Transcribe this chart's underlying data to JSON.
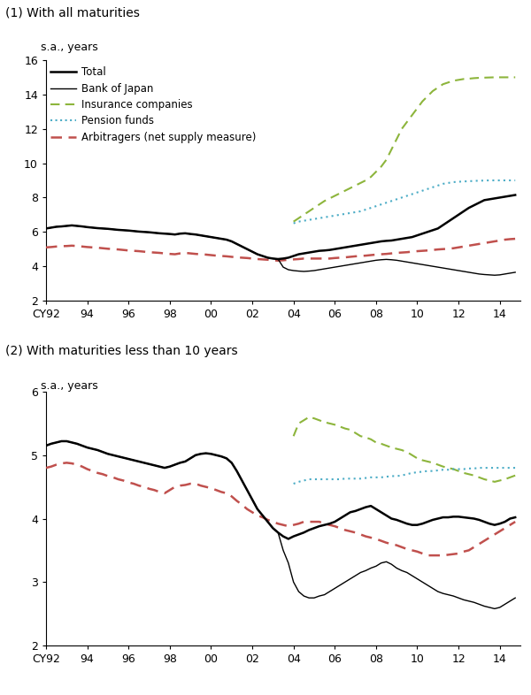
{
  "title1": "(1) With all maturities",
  "title2": "(2) With maturities less than 10 years",
  "ylabel": "s.a., years",
  "xtick_labels": [
    "CY92",
    "94",
    "96",
    "98",
    "00",
    "02",
    "04",
    "06",
    "08",
    "10",
    "12",
    "14"
  ],
  "ylim1": [
    2,
    16
  ],
  "ylim2": [
    2,
    6
  ],
  "yticks1": [
    2,
    4,
    6,
    8,
    10,
    12,
    14,
    16
  ],
  "yticks2": [
    2,
    3,
    4,
    5,
    6
  ],
  "legend_labels": [
    "Total",
    "Bank of Japan",
    "Insurance companies",
    "Pension funds",
    "Arbitragers (net supply measure)"
  ],
  "colors": {
    "total": "#000000",
    "boj": "#000000",
    "insurance": "#8db53c",
    "pension": "#4bacc6",
    "arbitragers": "#c0504d"
  },
  "x": [
    1992.0,
    1992.25,
    1992.5,
    1992.75,
    1993.0,
    1993.25,
    1993.5,
    1993.75,
    1994.0,
    1994.25,
    1994.5,
    1994.75,
    1995.0,
    1995.25,
    1995.5,
    1995.75,
    1996.0,
    1996.25,
    1996.5,
    1996.75,
    1997.0,
    1997.25,
    1997.5,
    1997.75,
    1998.0,
    1998.25,
    1998.5,
    1998.75,
    1999.0,
    1999.25,
    1999.5,
    1999.75,
    2000.0,
    2000.25,
    2000.5,
    2000.75,
    2001.0,
    2001.25,
    2001.5,
    2001.75,
    2002.0,
    2002.25,
    2002.5,
    2002.75,
    2003.0,
    2003.25,
    2003.5,
    2003.75,
    2004.0,
    2004.25,
    2004.5,
    2004.75,
    2005.0,
    2005.25,
    2005.5,
    2005.75,
    2006.0,
    2006.25,
    2006.5,
    2006.75,
    2007.0,
    2007.25,
    2007.5,
    2007.75,
    2008.0,
    2008.25,
    2008.5,
    2008.75,
    2009.0,
    2009.25,
    2009.5,
    2009.75,
    2010.0,
    2010.25,
    2010.5,
    2010.75,
    2011.0,
    2011.25,
    2011.5,
    2011.75,
    2012.0,
    2012.25,
    2012.5,
    2012.75,
    2013.0,
    2013.25,
    2013.5,
    2013.75,
    2014.0,
    2014.25,
    2014.5,
    2014.75
  ],
  "total1": [
    6.2,
    6.25,
    6.3,
    6.32,
    6.35,
    6.38,
    6.35,
    6.32,
    6.28,
    6.25,
    6.22,
    6.2,
    6.18,
    6.15,
    6.12,
    6.1,
    6.08,
    6.05,
    6.02,
    6.0,
    5.98,
    5.95,
    5.92,
    5.9,
    5.88,
    5.85,
    5.9,
    5.92,
    5.88,
    5.85,
    5.8,
    5.75,
    5.7,
    5.65,
    5.6,
    5.55,
    5.45,
    5.3,
    5.15,
    5.0,
    4.85,
    4.7,
    4.6,
    4.5,
    4.45,
    4.42,
    4.45,
    4.5,
    4.6,
    4.7,
    4.75,
    4.8,
    4.85,
    4.9,
    4.92,
    4.95,
    5.0,
    5.05,
    5.1,
    5.15,
    5.2,
    5.25,
    5.3,
    5.35,
    5.4,
    5.45,
    5.48,
    5.5,
    5.55,
    5.6,
    5.65,
    5.7,
    5.8,
    5.9,
    6.0,
    6.1,
    6.2,
    6.4,
    6.6,
    6.8,
    7.0,
    7.2,
    7.4,
    7.55,
    7.7,
    7.85,
    7.9,
    7.95,
    8.0,
    8.05,
    8.1,
    8.15
  ],
  "boj1": [
    6.2,
    6.25,
    6.3,
    6.32,
    6.35,
    6.38,
    6.35,
    6.32,
    6.28,
    6.25,
    6.22,
    6.2,
    6.18,
    6.15,
    6.12,
    6.1,
    6.08,
    6.05,
    6.02,
    6.0,
    5.98,
    5.95,
    5.92,
    5.9,
    5.88,
    5.85,
    5.9,
    5.92,
    5.88,
    5.85,
    5.8,
    5.75,
    5.7,
    5.65,
    5.6,
    5.55,
    5.45,
    5.3,
    5.15,
    5.0,
    4.85,
    4.7,
    4.6,
    4.5,
    4.45,
    4.42,
    3.95,
    3.8,
    3.75,
    3.72,
    3.7,
    3.72,
    3.75,
    3.8,
    3.85,
    3.9,
    3.95,
    4.0,
    4.05,
    4.1,
    4.15,
    4.2,
    4.25,
    4.3,
    4.35,
    4.38,
    4.4,
    4.38,
    4.35,
    4.3,
    4.25,
    4.2,
    4.15,
    4.1,
    4.05,
    4.0,
    3.95,
    3.9,
    3.85,
    3.8,
    3.75,
    3.7,
    3.65,
    3.6,
    3.55,
    3.52,
    3.5,
    3.48,
    3.5,
    3.55,
    3.6,
    3.65
  ],
  "insurance1": [
    null,
    null,
    null,
    null,
    null,
    null,
    null,
    null,
    null,
    null,
    null,
    null,
    null,
    null,
    null,
    null,
    null,
    null,
    null,
    null,
    null,
    null,
    null,
    null,
    null,
    null,
    null,
    null,
    null,
    null,
    null,
    null,
    null,
    null,
    null,
    null,
    null,
    null,
    null,
    null,
    null,
    null,
    null,
    null,
    null,
    null,
    null,
    null,
    6.6,
    6.8,
    7.0,
    7.2,
    7.4,
    7.6,
    7.8,
    7.95,
    8.1,
    8.25,
    8.4,
    8.55,
    8.7,
    8.85,
    9.0,
    9.2,
    9.5,
    9.8,
    10.2,
    10.8,
    11.4,
    12.0,
    12.4,
    12.8,
    13.2,
    13.6,
    13.9,
    14.2,
    14.4,
    14.6,
    14.7,
    14.8,
    14.85,
    14.9,
    14.92,
    14.95,
    14.97,
    14.98,
    14.99,
    15.0,
    15.0,
    15.0,
    15.0,
    15.0
  ],
  "pension1": [
    null,
    null,
    null,
    null,
    null,
    null,
    null,
    null,
    null,
    null,
    null,
    null,
    null,
    null,
    null,
    null,
    null,
    null,
    null,
    null,
    null,
    null,
    null,
    null,
    null,
    null,
    null,
    null,
    null,
    null,
    null,
    null,
    null,
    null,
    null,
    null,
    null,
    null,
    null,
    null,
    null,
    null,
    null,
    null,
    null,
    null,
    null,
    null,
    6.5,
    6.6,
    6.65,
    6.7,
    6.75,
    6.8,
    6.85,
    6.9,
    6.95,
    7.0,
    7.05,
    7.1,
    7.15,
    7.2,
    7.3,
    7.4,
    7.5,
    7.6,
    7.7,
    7.8,
    7.9,
    8.0,
    8.1,
    8.2,
    8.3,
    8.4,
    8.5,
    8.6,
    8.7,
    8.8,
    8.85,
    8.9,
    8.92,
    8.94,
    8.95,
    8.97,
    8.98,
    8.99,
    9.0,
    9.0,
    9.0,
    9.0,
    9.0,
    9.0
  ],
  "arbitragers1": [
    5.1,
    5.12,
    5.15,
    5.17,
    5.18,
    5.2,
    5.18,
    5.15,
    5.12,
    5.1,
    5.08,
    5.05,
    5.02,
    5.0,
    4.98,
    4.95,
    4.92,
    4.9,
    4.88,
    4.85,
    4.82,
    4.8,
    4.78,
    4.75,
    4.72,
    4.7,
    4.75,
    4.78,
    4.75,
    4.72,
    4.7,
    4.68,
    4.65,
    4.62,
    4.6,
    4.58,
    4.55,
    4.52,
    4.5,
    4.48,
    4.45,
    4.42,
    4.4,
    4.38,
    4.35,
    4.33,
    4.35,
    4.38,
    4.4,
    4.42,
    4.45,
    4.45,
    4.45,
    4.45,
    4.45,
    4.45,
    4.48,
    4.5,
    4.52,
    4.55,
    4.58,
    4.6,
    4.62,
    4.65,
    4.68,
    4.7,
    4.72,
    4.75,
    4.78,
    4.8,
    4.82,
    4.85,
    4.88,
    4.9,
    4.92,
    4.95,
    4.98,
    5.0,
    5.02,
    5.05,
    5.1,
    5.15,
    5.2,
    5.25,
    5.3,
    5.35,
    5.4,
    5.45,
    5.5,
    5.55,
    5.58,
    5.6
  ],
  "total2": [
    5.15,
    5.18,
    5.2,
    5.22,
    5.22,
    5.2,
    5.18,
    5.15,
    5.12,
    5.1,
    5.08,
    5.05,
    5.02,
    5.0,
    4.98,
    4.96,
    4.94,
    4.92,
    4.9,
    4.88,
    4.86,
    4.84,
    4.82,
    4.8,
    4.82,
    4.85,
    4.88,
    4.9,
    4.95,
    5.0,
    5.02,
    5.03,
    5.02,
    5.0,
    4.98,
    4.95,
    4.88,
    4.75,
    4.6,
    4.45,
    4.3,
    4.15,
    4.05,
    3.95,
    3.85,
    3.78,
    3.72,
    3.68,
    3.72,
    3.75,
    3.78,
    3.82,
    3.85,
    3.88,
    3.9,
    3.92,
    3.95,
    4.0,
    4.05,
    4.1,
    4.12,
    4.15,
    4.18,
    4.2,
    4.15,
    4.1,
    4.05,
    4.0,
    3.98,
    3.95,
    3.92,
    3.9,
    3.9,
    3.92,
    3.95,
    3.98,
    4.0,
    4.02,
    4.02,
    4.03,
    4.03,
    4.02,
    4.01,
    4.0,
    3.98,
    3.95,
    3.92,
    3.9,
    3.92,
    3.95,
    4.0,
    4.02
  ],
  "boj2": [
    5.15,
    5.18,
    5.2,
    5.22,
    5.22,
    5.2,
    5.18,
    5.15,
    5.12,
    5.1,
    5.08,
    5.05,
    5.02,
    5.0,
    4.98,
    4.96,
    4.94,
    4.92,
    4.9,
    4.88,
    4.86,
    4.84,
    4.82,
    4.8,
    4.82,
    4.85,
    4.88,
    4.9,
    4.95,
    5.0,
    5.02,
    5.03,
    5.02,
    5.0,
    4.98,
    4.95,
    4.88,
    4.75,
    4.6,
    4.45,
    4.3,
    4.15,
    4.05,
    3.95,
    3.85,
    3.78,
    3.5,
    3.3,
    3.0,
    2.85,
    2.78,
    2.75,
    2.75,
    2.78,
    2.8,
    2.85,
    2.9,
    2.95,
    3.0,
    3.05,
    3.1,
    3.15,
    3.18,
    3.22,
    3.25,
    3.3,
    3.32,
    3.28,
    3.22,
    3.18,
    3.15,
    3.1,
    3.05,
    3.0,
    2.95,
    2.9,
    2.85,
    2.82,
    2.8,
    2.78,
    2.75,
    2.72,
    2.7,
    2.68,
    2.65,
    2.62,
    2.6,
    2.58,
    2.6,
    2.65,
    2.7,
    2.75
  ],
  "insurance2": [
    null,
    null,
    null,
    null,
    null,
    null,
    null,
    null,
    null,
    null,
    null,
    null,
    null,
    null,
    null,
    null,
    null,
    null,
    null,
    null,
    null,
    null,
    null,
    null,
    null,
    null,
    null,
    null,
    null,
    null,
    null,
    null,
    null,
    null,
    null,
    null,
    null,
    null,
    null,
    null,
    null,
    null,
    null,
    null,
    null,
    null,
    null,
    null,
    5.3,
    5.5,
    5.55,
    5.6,
    5.58,
    5.55,
    5.52,
    5.5,
    5.48,
    5.45,
    5.42,
    5.4,
    5.35,
    5.3,
    5.28,
    5.25,
    5.2,
    5.18,
    5.15,
    5.12,
    5.1,
    5.08,
    5.05,
    5.0,
    4.95,
    4.92,
    4.9,
    4.88,
    4.85,
    4.82,
    4.8,
    4.78,
    4.75,
    4.72,
    4.7,
    4.68,
    4.65,
    4.62,
    4.6,
    4.58,
    4.6,
    4.62,
    4.65,
    4.68
  ],
  "pension2": [
    null,
    null,
    null,
    null,
    null,
    null,
    null,
    null,
    null,
    null,
    null,
    null,
    null,
    null,
    null,
    null,
    null,
    null,
    null,
    null,
    null,
    null,
    null,
    null,
    null,
    null,
    null,
    null,
    null,
    null,
    null,
    null,
    null,
    null,
    null,
    null,
    null,
    null,
    null,
    null,
    null,
    null,
    null,
    null,
    null,
    null,
    null,
    null,
    4.55,
    4.58,
    4.6,
    4.62,
    4.62,
    4.62,
    4.62,
    4.62,
    4.62,
    4.62,
    4.63,
    4.63,
    4.63,
    4.63,
    4.64,
    4.65,
    4.65,
    4.65,
    4.66,
    4.67,
    4.67,
    4.68,
    4.7,
    4.72,
    4.73,
    4.74,
    4.75,
    4.75,
    4.76,
    4.77,
    4.77,
    4.78,
    4.78,
    4.78,
    4.79,
    4.79,
    4.8,
    4.8,
    4.8,
    4.8,
    4.8,
    4.8,
    4.8,
    4.8
  ],
  "arbitragers2": [
    4.8,
    4.82,
    4.85,
    4.87,
    4.88,
    4.87,
    4.85,
    4.82,
    4.78,
    4.75,
    4.72,
    4.7,
    4.67,
    4.65,
    4.62,
    4.6,
    4.57,
    4.55,
    4.52,
    4.5,
    4.47,
    4.45,
    4.42,
    4.4,
    4.45,
    4.5,
    4.52,
    4.53,
    4.55,
    4.55,
    4.52,
    4.5,
    4.48,
    4.45,
    4.42,
    4.4,
    4.35,
    4.28,
    4.22,
    4.15,
    4.1,
    4.05,
    4.02,
    3.98,
    3.95,
    3.92,
    3.9,
    3.88,
    3.9,
    3.92,
    3.95,
    3.95,
    3.95,
    3.95,
    3.92,
    3.9,
    3.88,
    3.85,
    3.82,
    3.8,
    3.78,
    3.75,
    3.72,
    3.7,
    3.68,
    3.65,
    3.62,
    3.6,
    3.58,
    3.55,
    3.52,
    3.5,
    3.48,
    3.45,
    3.42,
    3.42,
    3.42,
    3.42,
    3.43,
    3.44,
    3.45,
    3.48,
    3.5,
    3.55,
    3.6,
    3.65,
    3.7,
    3.75,
    3.8,
    3.85,
    3.9,
    3.95
  ]
}
